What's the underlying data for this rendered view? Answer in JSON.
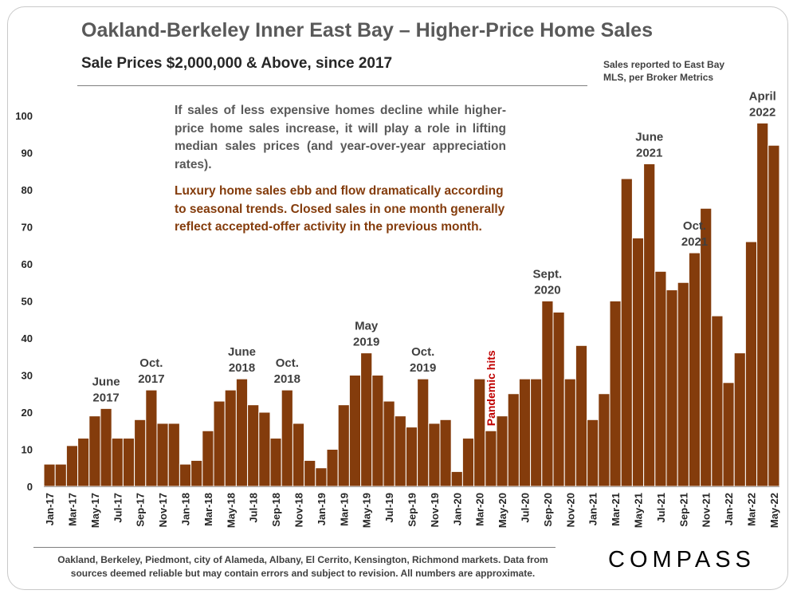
{
  "title": "Oakland-Berkeley Inner East Bay – Higher-Price Home Sales",
  "subtitle": "Sale Prices $2,000,000 & Above, since 2017",
  "source_note": "Sales reported to East Bay MLS, per Broker Metrics",
  "note_gray": "If sales of less expensive homes decline while higher-price home sales increase, it will play a role in lifting median sales prices (and year-over-year appreciation rates).",
  "note_brown": "Luxury home sales ebb and flow dramatically according to seasonal trends. Closed sales in one month generally reflect accepted-offer activity in the previous month.",
  "footer": "Oakland, Berkeley, Piedmont, city of Alameda, Albany, El Cerrito, Kensington, Richmond markets. Data from sources deemed reliable but may contain errors and subject to revision. All numbers are approximate.",
  "logo": "COMPASS",
  "colors": {
    "bar": "#843c0c",
    "bar_edge": "#ffffff",
    "annotation": "#404040",
    "pandemic": "#c00000"
  },
  "chart_data": {
    "type": "bar",
    "title": "Oakland-Berkeley Inner East Bay – Higher-Price Home Sales",
    "xlabel": "",
    "ylabel": "",
    "ylim": [
      0,
      100
    ],
    "yticks": [
      0,
      10,
      20,
      30,
      40,
      50,
      60,
      70,
      80,
      90,
      100
    ],
    "grid": false,
    "categories": [
      "Jan-17",
      "Feb-17",
      "Mar-17",
      "Apr-17",
      "May-17",
      "Jun-17",
      "Jul-17",
      "Aug-17",
      "Sep-17",
      "Oct-17",
      "Nov-17",
      "Dec-17",
      "Jan-18",
      "Feb-18",
      "Mar-18",
      "Apr-18",
      "May-18",
      "Jun-18",
      "Jul-18",
      "Aug-18",
      "Sep-18",
      "Oct-18",
      "Nov-18",
      "Dec-18",
      "Jan-19",
      "Feb-19",
      "Mar-19",
      "Apr-19",
      "May-19",
      "Jun-19",
      "Jul-19",
      "Aug-19",
      "Sep-19",
      "Oct-19",
      "Nov-19",
      "Dec-19",
      "Jan-20",
      "Feb-20",
      "Mar-20",
      "Apr-20",
      "May-20",
      "Jun-20",
      "Jul-20",
      "Aug-20",
      "Sep-20",
      "Oct-20",
      "Nov-20",
      "Dec-20",
      "Jan-21",
      "Feb-21",
      "Mar-21",
      "Apr-21",
      "May-21",
      "Jun-21",
      "Jul-21",
      "Aug-21",
      "Sep-21",
      "Oct-21",
      "Nov-21",
      "Dec-21",
      "Jan-22",
      "Feb-22",
      "Mar-22",
      "Apr-22",
      "May-22"
    ],
    "tick_labels": [
      "Jan-17",
      "",
      "Mar-17",
      "",
      "May-17",
      "",
      "Jul-17",
      "",
      "Sep-17",
      "",
      "Nov-17",
      "",
      "Jan-18",
      "",
      "Mar-18",
      "",
      "May-18",
      "",
      "Jul-18",
      "",
      "Sep-18",
      "",
      "Nov-18",
      "",
      "Jan-19",
      "",
      "Mar-19",
      "",
      "May-19",
      "",
      "Jul-19",
      "",
      "Sep-19",
      "",
      "Nov-19",
      "",
      "Jan-20",
      "",
      "Mar-20",
      "",
      "May-20",
      "",
      "Jul-20",
      "",
      "Sep-20",
      "",
      "Nov-20",
      "",
      "Jan-21",
      "",
      "Mar-21",
      "",
      "May-21",
      "",
      "Jul-21",
      "",
      "Sep-21",
      "",
      "Nov-21",
      "",
      "Jan-22",
      "",
      "Mar-22",
      "",
      "May-22"
    ],
    "values": [
      6,
      6,
      11,
      13,
      19,
      21,
      13,
      13,
      18,
      26,
      17,
      17,
      6,
      7,
      15,
      23,
      26,
      29,
      22,
      20,
      13,
      26,
      17,
      7,
      5,
      10,
      22,
      30,
      36,
      30,
      23,
      19,
      16,
      29,
      17,
      18,
      4,
      13,
      29,
      15,
      19,
      25,
      29,
      29,
      50,
      47,
      29,
      38,
      18,
      25,
      50,
      83,
      67,
      87,
      58,
      53,
      55,
      63,
      75,
      46,
      28,
      36,
      66,
      98,
      92
    ],
    "annotations": [
      {
        "index": 5,
        "lines": [
          "June",
          "2017"
        ]
      },
      {
        "index": 9,
        "lines": [
          "Oct.",
          "2017"
        ]
      },
      {
        "index": 17,
        "lines": [
          "June",
          "2018"
        ]
      },
      {
        "index": 21,
        "lines": [
          "Oct.",
          "2018"
        ]
      },
      {
        "index": 28,
        "lines": [
          "May",
          "2019"
        ]
      },
      {
        "index": 33,
        "lines": [
          "Oct.",
          "2019"
        ]
      },
      {
        "index": 44,
        "lines": [
          "Sept.",
          "2020"
        ]
      },
      {
        "index": 53,
        "lines": [
          "June",
          "2021"
        ]
      },
      {
        "index": 57,
        "lines": [
          "Oct.",
          "2021"
        ]
      },
      {
        "index": 63,
        "lines": [
          "April",
          "2022"
        ]
      }
    ],
    "special_annotation": {
      "index": 39,
      "text": "Pandemic hits"
    }
  }
}
